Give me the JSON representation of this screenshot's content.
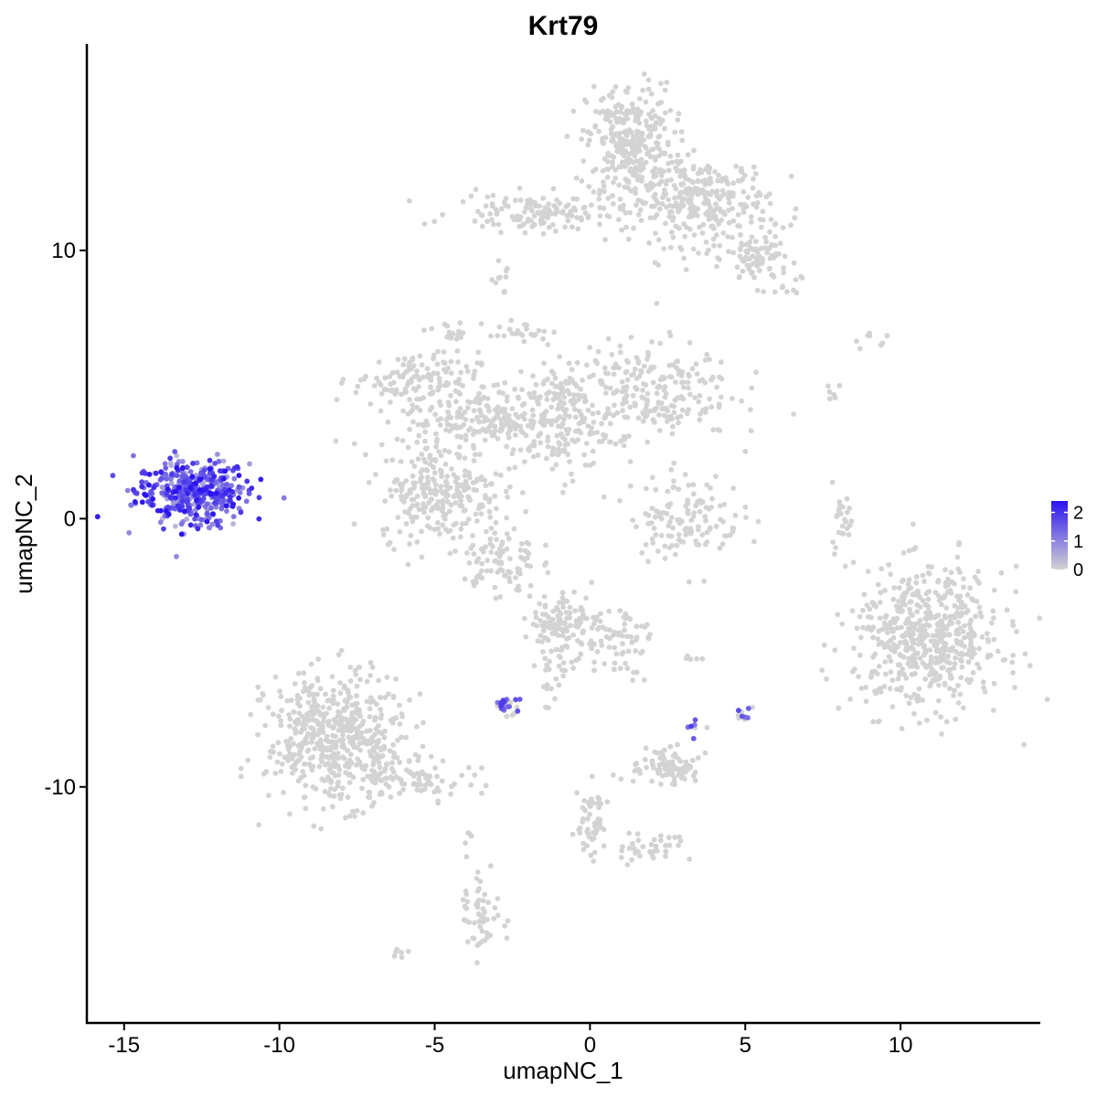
{
  "chart_data": {
    "type": "scatter",
    "title": "Krt79",
    "xlabel": "umapNC_1",
    "ylabel": "umapNC_2",
    "xlim": [
      -16.2,
      14.5
    ],
    "ylim": [
      -18.8,
      17.7
    ],
    "x_ticks": [
      -15,
      -10,
      -5,
      0,
      5,
      10
    ],
    "x_tick_labels": [
      "-15",
      "-10",
      "-5",
      "0",
      "5",
      "10"
    ],
    "y_ticks": [
      -10,
      0,
      10
    ],
    "y_tick_labels": [
      "-10",
      "0",
      "10"
    ],
    "grid": false,
    "legend": {
      "placement": "right",
      "type": "colorbar",
      "range": [
        0,
        2.4
      ],
      "ticks": [
        0,
        1,
        2
      ],
      "tick_labels": [
        "0",
        "1",
        "2"
      ],
      "low_color": "#d3d3d3",
      "high_color": "#2b14f0"
    },
    "colors": {
      "low": "#d3d3d3",
      "high": "#2b14f0"
    },
    "clusters": [
      {
        "center": [
          -12.8,
          1.0
        ],
        "spread": [
          0.9,
          0.6
        ],
        "n": 420,
        "expression": "high"
      },
      {
        "center": [
          1.3,
          14.0
        ],
        "spread": [
          0.7,
          1.1
        ],
        "n": 300,
        "expression": "none"
      },
      {
        "center": [
          3.6,
          11.8
        ],
        "spread": [
          1.1,
          0.8
        ],
        "n": 280,
        "expression": "none"
      },
      {
        "center": [
          5.4,
          9.7
        ],
        "spread": [
          0.5,
          0.5
        ],
        "n": 90,
        "expression": "none"
      },
      {
        "center": [
          -1.6,
          11.4
        ],
        "spread": [
          1.4,
          0.35
        ],
        "n": 140,
        "expression": "none"
      },
      {
        "center": [
          -5.6,
          5.2
        ],
        "spread": [
          1.0,
          0.5
        ],
        "n": 120,
        "expression": "none"
      },
      {
        "center": [
          -3.6,
          3.7
        ],
        "spread": [
          1.2,
          0.6
        ],
        "n": 190,
        "expression": "none"
      },
      {
        "center": [
          -4.8,
          1.0
        ],
        "spread": [
          1.0,
          0.9
        ],
        "n": 260,
        "expression": "none"
      },
      {
        "center": [
          -1.0,
          3.5
        ],
        "spread": [
          0.8,
          1.0
        ],
        "n": 160,
        "expression": "none"
      },
      {
        "center": [
          1.6,
          4.8
        ],
        "spread": [
          1.5,
          0.9
        ],
        "n": 260,
        "expression": "none"
      },
      {
        "center": [
          -4.4,
          6.8
        ],
        "spread": [
          0.2,
          0.3
        ],
        "n": 15,
        "expression": "none"
      },
      {
        "center": [
          3.1,
          0.1
        ],
        "spread": [
          0.9,
          0.8
        ],
        "n": 130,
        "expression": "none"
      },
      {
        "center": [
          -2.9,
          -1.6
        ],
        "spread": [
          0.6,
          0.7
        ],
        "n": 90,
        "expression": "none"
      },
      {
        "center": [
          8.1,
          0.1
        ],
        "spread": [
          0.2,
          0.6
        ],
        "n": 25,
        "expression": "none"
      },
      {
        "center": [
          10.9,
          -4.5
        ],
        "spread": [
          1.2,
          1.3
        ],
        "n": 560,
        "expression": "none"
      },
      {
        "center": [
          -8.2,
          -8.2
        ],
        "spread": [
          1.1,
          1.2
        ],
        "n": 520,
        "expression": "none"
      },
      {
        "center": [
          -5.6,
          -9.6
        ],
        "spread": [
          1.0,
          0.4
        ],
        "n": 80,
        "expression": "none"
      },
      {
        "center": [
          -0.9,
          -3.9
        ],
        "spread": [
          0.5,
          0.6
        ],
        "n": 110,
        "expression": "none"
      },
      {
        "center": [
          0.8,
          -4.5
        ],
        "spread": [
          0.6,
          0.7
        ],
        "n": 70,
        "expression": "none"
      },
      {
        "center": [
          -1.2,
          -5.8
        ],
        "spread": [
          0.3,
          0.6
        ],
        "n": 25,
        "expression": "none"
      },
      {
        "center": [
          -2.6,
          -7.0
        ],
        "spread": [
          0.25,
          0.2
        ],
        "n": 25,
        "expression": "low"
      },
      {
        "center": [
          2.5,
          -9.3
        ],
        "spread": [
          0.5,
          0.35
        ],
        "n": 90,
        "expression": "none"
      },
      {
        "center": [
          3.3,
          -7.8
        ],
        "spread": [
          0.15,
          0.2
        ],
        "n": 8,
        "expression": "low"
      },
      {
        "center": [
          4.9,
          -7.3
        ],
        "spread": [
          0.15,
          0.15
        ],
        "n": 12,
        "expression": "low"
      },
      {
        "center": [
          0.0,
          -11.2
        ],
        "spread": [
          0.3,
          0.8
        ],
        "n": 50,
        "expression": "none"
      },
      {
        "center": [
          2.0,
          -12.3
        ],
        "spread": [
          0.5,
          0.3
        ],
        "n": 35,
        "expression": "none"
      },
      {
        "center": [
          -3.5,
          -14.7
        ],
        "spread": [
          0.3,
          0.7
        ],
        "n": 55,
        "expression": "none"
      },
      {
        "center": [
          -3.9,
          -11.9
        ],
        "spread": [
          0.1,
          0.3
        ],
        "n": 6,
        "expression": "none"
      },
      {
        "center": [
          -6.1,
          -16.2
        ],
        "spread": [
          0.1,
          0.1
        ],
        "n": 6,
        "expression": "none"
      },
      {
        "center": [
          -2.8,
          7.0
        ],
        "spread": [
          1.0,
          0.15
        ],
        "n": 25,
        "expression": "none"
      },
      {
        "center": [
          -2.9,
          8.9
        ],
        "spread": [
          0.2,
          0.3
        ],
        "n": 10,
        "expression": "none"
      },
      {
        "center": [
          6.5,
          8.8
        ],
        "spread": [
          0.2,
          0.2
        ],
        "n": 8,
        "expression": "none"
      },
      {
        "center": [
          7.8,
          4.6
        ],
        "spread": [
          0.1,
          0.3
        ],
        "n": 6,
        "expression": "none"
      },
      {
        "center": [
          9.4,
          6.6
        ],
        "spread": [
          0.5,
          0.2
        ],
        "n": 8,
        "expression": "none"
      },
      {
        "center": [
          3.2,
          -5.2
        ],
        "spread": [
          0.2,
          0.05
        ],
        "n": 5,
        "expression": "none"
      }
    ]
  }
}
